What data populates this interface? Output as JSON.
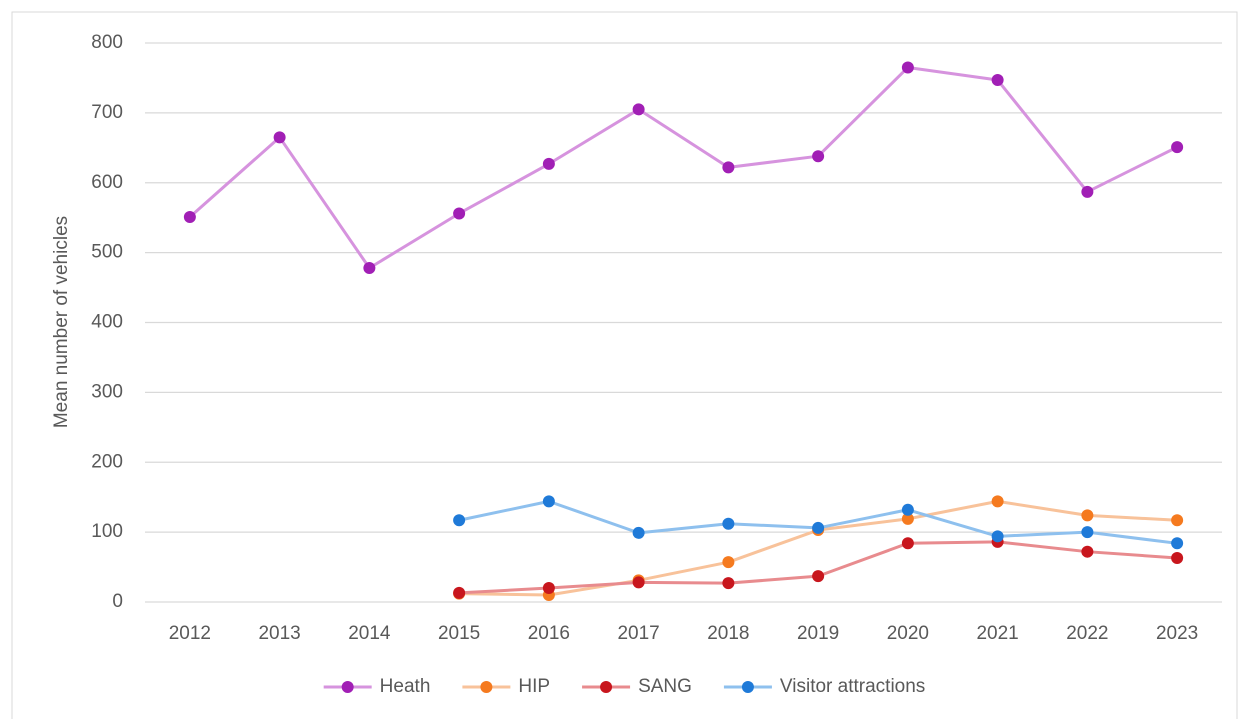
{
  "chart_data": {
    "type": "line",
    "y_label": "Mean number of vehicles",
    "categories": [
      "2012",
      "2013",
      "2014",
      "2015",
      "2016",
      "2017",
      "2018",
      "2019",
      "2020",
      "2021",
      "2022",
      "2023"
    ],
    "series": [
      {
        "name": "Heath",
        "color": "#a11fb5",
        "line_color": "#d693de",
        "values": [
          551,
          665,
          478,
          556,
          627,
          705,
          622,
          638,
          765,
          747,
          587,
          651
        ]
      },
      {
        "name": "HIP",
        "color": "#f57a1f",
        "line_color": "#f8c29a",
        "values": [
          null,
          null,
          null,
          12,
          10,
          31,
          57,
          103,
          119,
          144,
          124,
          117
        ]
      },
      {
        "name": "SANG",
        "color": "#c8161d",
        "line_color": "#e88b8e",
        "values": [
          null,
          null,
          null,
          13,
          20,
          28,
          27,
          37,
          84,
          86,
          72,
          63
        ]
      },
      {
        "name": "Visitor attractions",
        "color": "#1f7ad8",
        "line_color": "#8ec0ee",
        "values": [
          null,
          null,
          null,
          117,
          144,
          99,
          112,
          106,
          132,
          94,
          100,
          84
        ]
      }
    ],
    "ylim": [
      0,
      800
    ],
    "yticks": [
      0,
      100,
      200,
      300,
      400,
      500,
      600,
      700,
      800
    ],
    "grid": true,
    "legend": "bottom"
  }
}
